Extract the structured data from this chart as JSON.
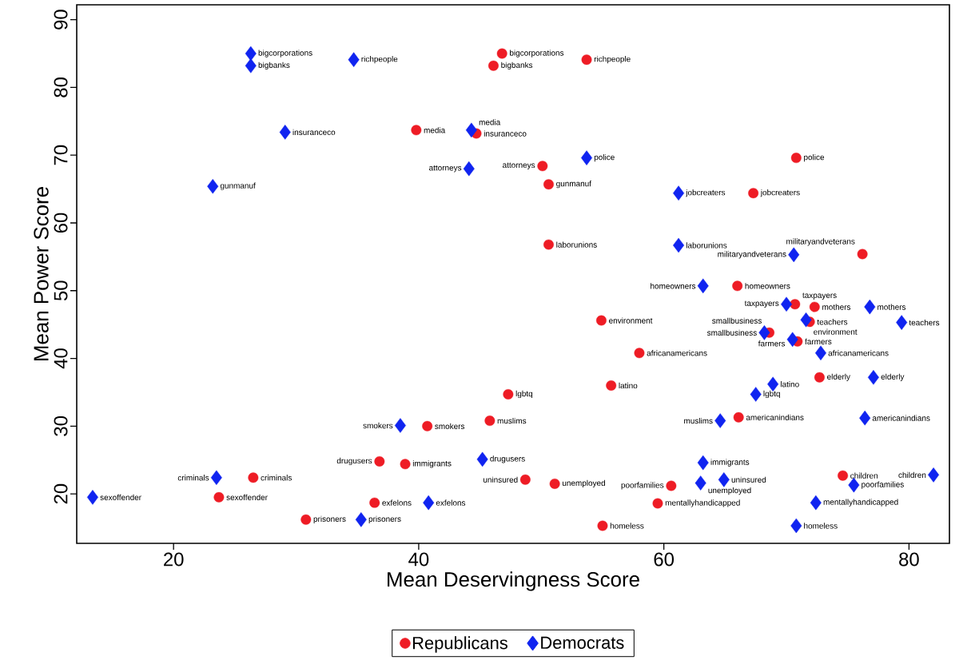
{
  "chart_data": {
    "type": "scatter",
    "xlabel": "Mean Deservingness Score",
    "ylabel": "Mean Power Score",
    "xlim": [
      12.1,
      83.3
    ],
    "ylim": [
      12.7,
      92.2
    ],
    "xticks": [
      20,
      40,
      60,
      80
    ],
    "yticks": [
      20,
      30,
      40,
      50,
      60,
      70,
      80,
      90
    ],
    "legend": "bottom",
    "series": [
      {
        "name": "Republicans",
        "color": "#ee1c25",
        "marker": "circle",
        "x": [
          46.8,
          46.1,
          53.7,
          39.8,
          44.7,
          50.1,
          50.6,
          70.8,
          67.3,
          50.6,
          76.2,
          66.0,
          54.9,
          70.7,
          72.3,
          71.9,
          68.6,
          70.9,
          58.0,
          72.7,
          55.7,
          47.3,
          45.8,
          66.1,
          48.7,
          51.1,
          60.6,
          59.5,
          55.0,
          74.6,
          40.7,
          36.8,
          38.9,
          26.5,
          23.7,
          36.4,
          30.8
        ],
        "values": [
          85.0,
          83.2,
          84.1,
          73.7,
          73.2,
          68.4,
          65.7,
          69.6,
          64.4,
          56.8,
          55.4,
          50.7,
          45.6,
          48.0,
          47.6,
          45.4,
          43.8,
          42.5,
          40.8,
          37.2,
          36.0,
          34.7,
          30.8,
          31.3,
          22.1,
          21.5,
          21.2,
          18.6,
          15.3,
          22.7,
          30.0,
          24.8,
          24.4,
          22.4,
          19.5,
          18.7,
          16.2
        ]
      },
      {
        "name": "Democrats",
        "color": "#1024f0",
        "marker": "diamond",
        "x": [
          26.3,
          26.3,
          34.7,
          29.1,
          23.2,
          44.3,
          44.1,
          53.7,
          61.2,
          61.2,
          70.6,
          63.2,
          70.0,
          76.8,
          71.6,
          79.4,
          68.2,
          70.5,
          72.8,
          77.1,
          68.9,
          67.5,
          64.6,
          76.4,
          45.2,
          63.2,
          63.0,
          64.9,
          75.5,
          82.0,
          72.4,
          70.8,
          38.5,
          23.5,
          13.4,
          40.8,
          35.3
        ],
        "values": [
          85.0,
          83.2,
          84.1,
          73.4,
          65.4,
          73.7,
          68.0,
          69.6,
          64.4,
          56.7,
          55.3,
          50.7,
          48.0,
          47.6,
          45.7,
          45.3,
          43.8,
          42.8,
          40.8,
          37.2,
          36.2,
          34.7,
          30.8,
          31.2,
          25.1,
          24.6,
          21.6,
          22.1,
          21.3,
          22.8,
          18.7,
          15.3,
          30.1,
          22.4,
          19.5,
          18.7,
          16.2
        ]
      }
    ],
    "annotations": [
      {
        "text": "bigcorporations",
        "x": 46.8,
        "y": 85.0
      },
      {
        "text": "bigbanks",
        "x": 46.1,
        "y": 83.2
      },
      {
        "text": "richpeople",
        "x": 53.7,
        "y": 84.1
      },
      {
        "text": "media",
        "x": 39.8,
        "y": 73.7
      },
      {
        "text": "insuranceco",
        "x": 44.7,
        "y": 73.2
      },
      {
        "text": "attorneys",
        "x": 50.1,
        "y": 68.4
      },
      {
        "text": "gunmanuf",
        "x": 50.6,
        "y": 65.7
      },
      {
        "text": "police",
        "x": 70.8,
        "y": 69.6
      },
      {
        "text": "jobcreaters",
        "x": 67.3,
        "y": 64.4
      },
      {
        "text": "laborunions",
        "x": 50.6,
        "y": 56.8
      },
      {
        "text": "militaryandveterans",
        "x": 76.2,
        "y": 55.4
      },
      {
        "text": "homeowners",
        "x": 66.0,
        "y": 50.7
      },
      {
        "text": "environment",
        "x": 54.9,
        "y": 45.6
      },
      {
        "text": "taxpayers",
        "x": 70.7,
        "y": 48.0
      },
      {
        "text": "mothers",
        "x": 72.3,
        "y": 47.6
      },
      {
        "text": "teachers",
        "x": 71.9,
        "y": 45.4
      },
      {
        "text": "smallbusiness",
        "x": 68.6,
        "y": 43.8
      },
      {
        "text": "farmers",
        "x": 70.9,
        "y": 42.5
      },
      {
        "text": "africanamericans",
        "x": 58.0,
        "y": 40.8
      },
      {
        "text": "elderly",
        "x": 72.7,
        "y": 37.2
      },
      {
        "text": "latino",
        "x": 55.7,
        "y": 36.0
      },
      {
        "text": "lgbtq",
        "x": 47.3,
        "y": 34.7
      },
      {
        "text": "muslims",
        "x": 45.8,
        "y": 30.8
      },
      {
        "text": "americanindians",
        "x": 66.1,
        "y": 31.3
      },
      {
        "text": "uninsured",
        "x": 48.7,
        "y": 22.1
      },
      {
        "text": "unemployed",
        "x": 51.1,
        "y": 21.5
      },
      {
        "text": "poorfamilies",
        "x": 60.6,
        "y": 21.2
      },
      {
        "text": "mentallyhandicapped",
        "x": 59.5,
        "y": 18.6
      },
      {
        "text": "homeless",
        "x": 55.0,
        "y": 15.3
      },
      {
        "text": "children",
        "x": 74.6,
        "y": 22.7
      },
      {
        "text": "smokers",
        "x": 40.7,
        "y": 30.0
      },
      {
        "text": "drugusers",
        "x": 36.8,
        "y": 24.8
      },
      {
        "text": "immigrants",
        "x": 38.9,
        "y": 24.4
      },
      {
        "text": "criminals",
        "x": 26.5,
        "y": 22.4
      },
      {
        "text": "sexoffender",
        "x": 23.7,
        "y": 19.5
      },
      {
        "text": "exfelons",
        "x": 36.4,
        "y": 18.7
      },
      {
        "text": "prisoners",
        "x": 30.8,
        "y": 16.2
      },
      {
        "text": "bigcorporations",
        "x": 26.3,
        "y": 85.0
      },
      {
        "text": "bigbanks",
        "x": 26.3,
        "y": 83.2
      },
      {
        "text": "richpeople",
        "x": 34.7,
        "y": 84.1
      },
      {
        "text": "insuranceco",
        "x": 29.1,
        "y": 73.4
      },
      {
        "text": "gunmanuf",
        "x": 23.2,
        "y": 65.4
      },
      {
        "text": "media",
        "x": 44.3,
        "y": 73.7
      },
      {
        "text": "attorneys",
        "x": 44.1,
        "y": 68.0
      },
      {
        "text": "police",
        "x": 53.7,
        "y": 69.6
      },
      {
        "text": "jobcreaters",
        "x": 61.2,
        "y": 64.4
      },
      {
        "text": "laborunions",
        "x": 61.2,
        "y": 56.7
      },
      {
        "text": "militaryandveterans",
        "x": 70.6,
        "y": 55.3
      },
      {
        "text": "homeowners",
        "x": 63.2,
        "y": 50.7
      },
      {
        "text": "taxpayers",
        "x": 70.0,
        "y": 48.0
      },
      {
        "text": "mothers",
        "x": 76.8,
        "y": 47.6
      },
      {
        "text": "environment",
        "x": 71.6,
        "y": 45.7
      },
      {
        "text": "teachers",
        "x": 79.4,
        "y": 45.3
      },
      {
        "text": "smallbusiness",
        "x": 68.2,
        "y": 43.8
      },
      {
        "text": "farmers",
        "x": 70.5,
        "y": 42.8
      },
      {
        "text": "africanamericans",
        "x": 72.8,
        "y": 40.8
      },
      {
        "text": "elderly",
        "x": 77.1,
        "y": 37.2
      },
      {
        "text": "latino",
        "x": 68.9,
        "y": 36.2
      },
      {
        "text": "lgbtq",
        "x": 67.5,
        "y": 34.7
      },
      {
        "text": "muslims",
        "x": 64.6,
        "y": 30.8
      },
      {
        "text": "americanindians",
        "x": 76.4,
        "y": 31.2
      },
      {
        "text": "drugusers",
        "x": 45.2,
        "y": 25.1
      },
      {
        "text": "immigrants",
        "x": 63.2,
        "y": 24.6
      },
      {
        "text": "unemployed",
        "x": 63.0,
        "y": 21.6
      },
      {
        "text": "uninsured",
        "x": 64.9,
        "y": 22.1
      },
      {
        "text": "poorfamilies",
        "x": 75.5,
        "y": 21.3
      },
      {
        "text": "children",
        "x": 82.0,
        "y": 22.8
      },
      {
        "text": "mentallyhandicapped",
        "x": 72.4,
        "y": 18.7
      },
      {
        "text": "homeless",
        "x": 70.8,
        "y": 15.3
      },
      {
        "text": "smokers",
        "x": 38.5,
        "y": 30.1
      },
      {
        "text": "criminals",
        "x": 23.5,
        "y": 22.4
      },
      {
        "text": "sexoffender",
        "x": 13.4,
        "y": 19.5
      },
      {
        "text": "exfelons",
        "x": 40.8,
        "y": 18.7
      },
      {
        "text": "prisoners",
        "x": 35.3,
        "y": 16.2
      }
    ]
  }
}
